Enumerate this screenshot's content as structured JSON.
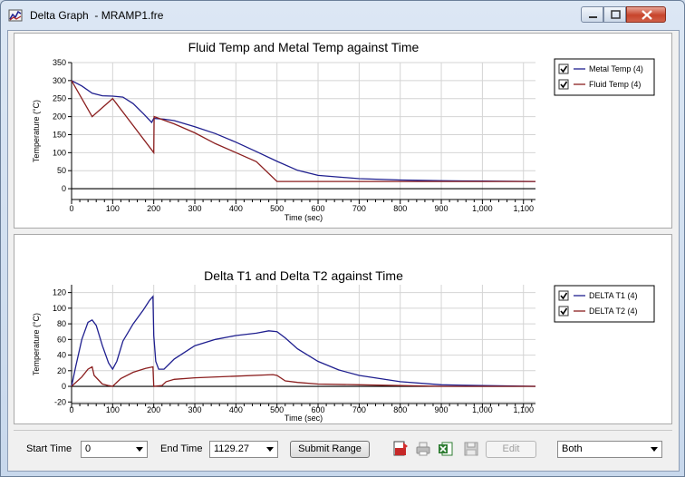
{
  "window": {
    "title": "Delta Graph  - MRAMP1.fre"
  },
  "icons": {
    "app": "graph-app-icon",
    "minimize": "minimize-icon",
    "maximize": "maximize-icon",
    "close": "close-icon"
  },
  "colors": {
    "blue_series": "#1f1f8f",
    "red_series": "#8b1f1f",
    "grid": "#d4d4d4"
  },
  "chart_data": [
    {
      "type": "line",
      "title": "Fluid Temp and Metal Temp against Time",
      "xlabel": "Time (sec)",
      "ylabel": "Temperature (°C)",
      "xlim": [
        0,
        1129.27
      ],
      "ylim": [
        -30,
        350
      ],
      "xticks": [
        0,
        100,
        200,
        300,
        400,
        500,
        600,
        700,
        800,
        900,
        1000,
        1100
      ],
      "xtick_labels": [
        "0",
        "100",
        "200",
        "300",
        "400",
        "500",
        "600",
        "700",
        "800",
        "900",
        "1,000",
        "1,100"
      ],
      "yticks": [
        0,
        50,
        100,
        150,
        200,
        250,
        300,
        350
      ],
      "ytick_labels": [
        "0",
        "50",
        "100",
        "150",
        "200",
        "250",
        "300",
        "350"
      ],
      "grid": true,
      "legend_position": "right",
      "series": [
        {
          "name": "Metal Temp (4)",
          "checked": true,
          "x": [
            0,
            25,
            50,
            75,
            100,
            125,
            150,
            175,
            195,
            200,
            225,
            250,
            300,
            350,
            400,
            450,
            500,
            550,
            600,
            700,
            800,
            900,
            1000,
            1129.27
          ],
          "y": [
            300,
            285,
            265,
            258,
            257,
            254,
            236,
            208,
            184,
            195,
            193,
            189,
            172,
            153,
            129,
            103,
            76,
            51,
            37,
            28,
            24,
            22,
            21,
            20
          ]
        },
        {
          "name": "Fluid Temp (4)",
          "checked": true,
          "x": [
            0,
            50,
            100,
            200,
            201,
            250,
            300,
            350,
            400,
            450,
            500,
            600,
            700,
            800,
            900,
            1000,
            1129.27
          ],
          "y": [
            300,
            200,
            250,
            100,
            200,
            180,
            155,
            125,
            100,
            75,
            20,
            20,
            20,
            20,
            20,
            20,
            20
          ]
        }
      ]
    },
    {
      "type": "line",
      "title": "Delta T1 and Delta T2 against Time",
      "xlabel": "Time (sec)",
      "ylabel": "Temperature (°C)",
      "xlim": [
        0,
        1129.27
      ],
      "ylim": [
        -22,
        130
      ],
      "xticks": [
        0,
        100,
        200,
        300,
        400,
        500,
        600,
        700,
        800,
        900,
        1000,
        1100
      ],
      "xtick_labels": [
        "0",
        "100",
        "200",
        "300",
        "400",
        "500",
        "600",
        "700",
        "800",
        "900",
        "1,000",
        "1,100"
      ],
      "yticks": [
        -20,
        0,
        20,
        40,
        60,
        80,
        100,
        120
      ],
      "ytick_labels": [
        "-20",
        "0",
        "20",
        "40",
        "60",
        "80",
        "100",
        "120"
      ],
      "grid": true,
      "legend_position": "right",
      "series": [
        {
          "name": "DELTA T1  (4)",
          "checked": true,
          "x": [
            0,
            10,
            25,
            40,
            50,
            60,
            75,
            90,
            100,
            110,
            125,
            150,
            175,
            190,
            198,
            200,
            205,
            212,
            225,
            250,
            300,
            350,
            400,
            450,
            480,
            500,
            520,
            550,
            600,
            650,
            700,
            800,
            900,
            1000,
            1129.27
          ],
          "y": [
            0,
            25,
            60,
            82,
            85,
            78,
            52,
            30,
            22,
            32,
            58,
            80,
            98,
            110,
            115,
            65,
            32,
            22,
            22,
            35,
            52,
            60,
            65,
            68,
            71,
            70,
            62,
            48,
            32,
            21,
            14,
            6,
            2,
            1,
            0
          ]
        },
        {
          "name": "DELTA T2  (4)",
          "checked": true,
          "x": [
            0,
            25,
            40,
            50,
            55,
            75,
            90,
            100,
            120,
            150,
            180,
            198,
            200,
            220,
            230,
            250,
            300,
            400,
            490,
            500,
            520,
            550,
            600,
            700,
            800,
            900,
            1000,
            1129.27
          ],
          "y": [
            0,
            12,
            22,
            25,
            14,
            3,
            1,
            0,
            10,
            18,
            23,
            25,
            0,
            1,
            6,
            9,
            11,
            13,
            15,
            14,
            7,
            5,
            3,
            2,
            1,
            0,
            0,
            0
          ]
        }
      ]
    }
  ],
  "toolbar": {
    "start_time_label": "Start Time",
    "start_time_value": "0",
    "end_time_label": "End Time",
    "end_time_value": "1129.27",
    "submit_label": "Submit Range",
    "edit_label": "Edit",
    "series_select_value": "Both",
    "icons": [
      "export-pdf-icon",
      "print-icon",
      "export-excel-icon",
      "save-icon"
    ]
  }
}
